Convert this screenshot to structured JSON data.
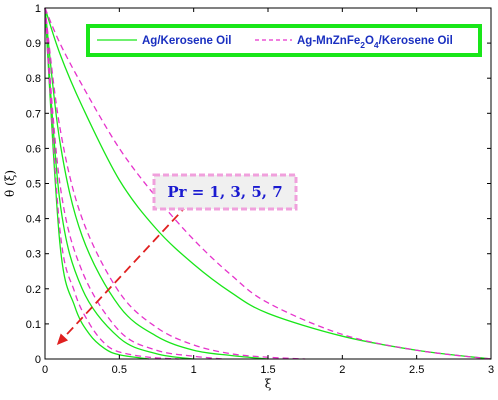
{
  "chart_data": {
    "type": "line",
    "xlabel": "ξ",
    "ylabel": "θ (ξ)",
    "xlim": [
      0,
      3
    ],
    "ylim": [
      0,
      1
    ],
    "x_ticks": [
      "0",
      "0.5",
      "1",
      "1.5",
      "2",
      "2.5",
      "3"
    ],
    "y_ticks": [
      "0",
      "0.1",
      "0.2",
      "0.3",
      "0.4",
      "0.5",
      "0.6",
      "0.7",
      "0.8",
      "0.9",
      "1"
    ],
    "grid": false,
    "legend_position": "top",
    "legend": {
      "solid_label": "Ag/Kerosene Oil",
      "dashed_prefix": "Ag-MnZnFe",
      "dashed_sub1": "2",
      "dashed_mid": "O",
      "dashed_sub2": "4",
      "dashed_suffix": "/Kerosene Oil"
    },
    "annotation": {
      "text": "Pr = 1, 3, 5, 7",
      "arrow_from": [
        0.96,
        0.44
      ],
      "arrow_to": [
        0.08,
        0.04
      ]
    },
    "colors": {
      "solid": "#19e619",
      "dashed": "#e633cc",
      "legend_border": "#19e619",
      "annotation_border": "#f0a0dc",
      "annotation_fill": "#f0f0f0",
      "arrow": "#e02020"
    },
    "series": [
      {
        "style": "solid",
        "x": [
          0,
          0.1,
          0.25,
          0.5,
          0.75,
          1.0,
          1.25,
          1.5,
          2.0,
          2.5,
          3.0
        ],
        "y": [
          1,
          0.87,
          0.72,
          0.51,
          0.37,
          0.27,
          0.19,
          0.13,
          0.065,
          0.025,
          0.0
        ]
      },
      {
        "style": "solid",
        "x": [
          0,
          0.1,
          0.25,
          0.5,
          0.75,
          1.0,
          1.25,
          1.5
        ],
        "y": [
          1,
          0.62,
          0.35,
          0.15,
          0.065,
          0.025,
          0.01,
          0.0
        ]
      },
      {
        "style": "solid",
        "x": [
          0,
          0.1,
          0.25,
          0.5,
          0.75,
          1.0
        ],
        "y": [
          1,
          0.45,
          0.2,
          0.06,
          0.015,
          0.0
        ]
      },
      {
        "style": "solid",
        "x": [
          0,
          0.1,
          0.2,
          0.3,
          0.4,
          0.5,
          0.7
        ],
        "y": [
          1,
          0.33,
          0.15,
          0.07,
          0.03,
          0.012,
          0.0
        ]
      },
      {
        "style": "dashed",
        "x": [
          0,
          0.1,
          0.25,
          0.5,
          0.75,
          1.0,
          1.25,
          1.5,
          2.0,
          2.5,
          3.0
        ],
        "y": [
          1,
          0.9,
          0.78,
          0.6,
          0.46,
          0.34,
          0.24,
          0.16,
          0.07,
          0.025,
          0.0
        ]
      },
      {
        "style": "dashed",
        "x": [
          0,
          0.1,
          0.25,
          0.5,
          0.75,
          1.0,
          1.25,
          1.5,
          1.75
        ],
        "y": [
          1,
          0.66,
          0.4,
          0.19,
          0.09,
          0.04,
          0.015,
          0.005,
          0.0
        ]
      },
      {
        "style": "dashed",
        "x": [
          0,
          0.1,
          0.25,
          0.5,
          0.75,
          1.0,
          1.2
        ],
        "y": [
          1,
          0.5,
          0.25,
          0.08,
          0.025,
          0.008,
          0.0
        ]
      },
      {
        "style": "dashed",
        "x": [
          0,
          0.1,
          0.2,
          0.3,
          0.4,
          0.5,
          0.7,
          0.9
        ],
        "y": [
          1,
          0.37,
          0.19,
          0.1,
          0.045,
          0.02,
          0.005,
          0.0
        ]
      }
    ]
  }
}
